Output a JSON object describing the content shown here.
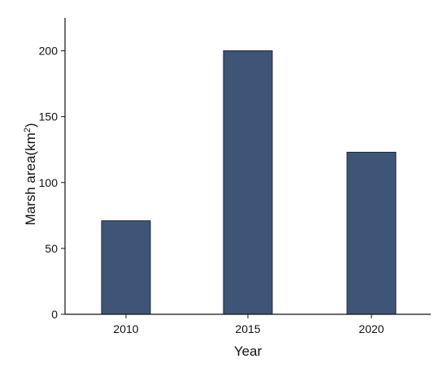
{
  "colors": {
    "bar_fill": "#3f5577",
    "bar_stroke": "#1c2433",
    "axis": "#111111"
  },
  "chart_data": {
    "type": "bar",
    "categories": [
      "2010",
      "2015",
      "2020"
    ],
    "values": [
      71,
      200,
      123
    ],
    "xlabel": "Year",
    "ylabel": "Marsh area(km²)",
    "ylabel_main": "Marsh area(km",
    "ylabel_sup": "2",
    "ylabel_end": ")",
    "ylim": [
      0,
      225
    ],
    "yticks": [
      0,
      50,
      100,
      150,
      200
    ],
    "grid": false,
    "legend": "none"
  }
}
